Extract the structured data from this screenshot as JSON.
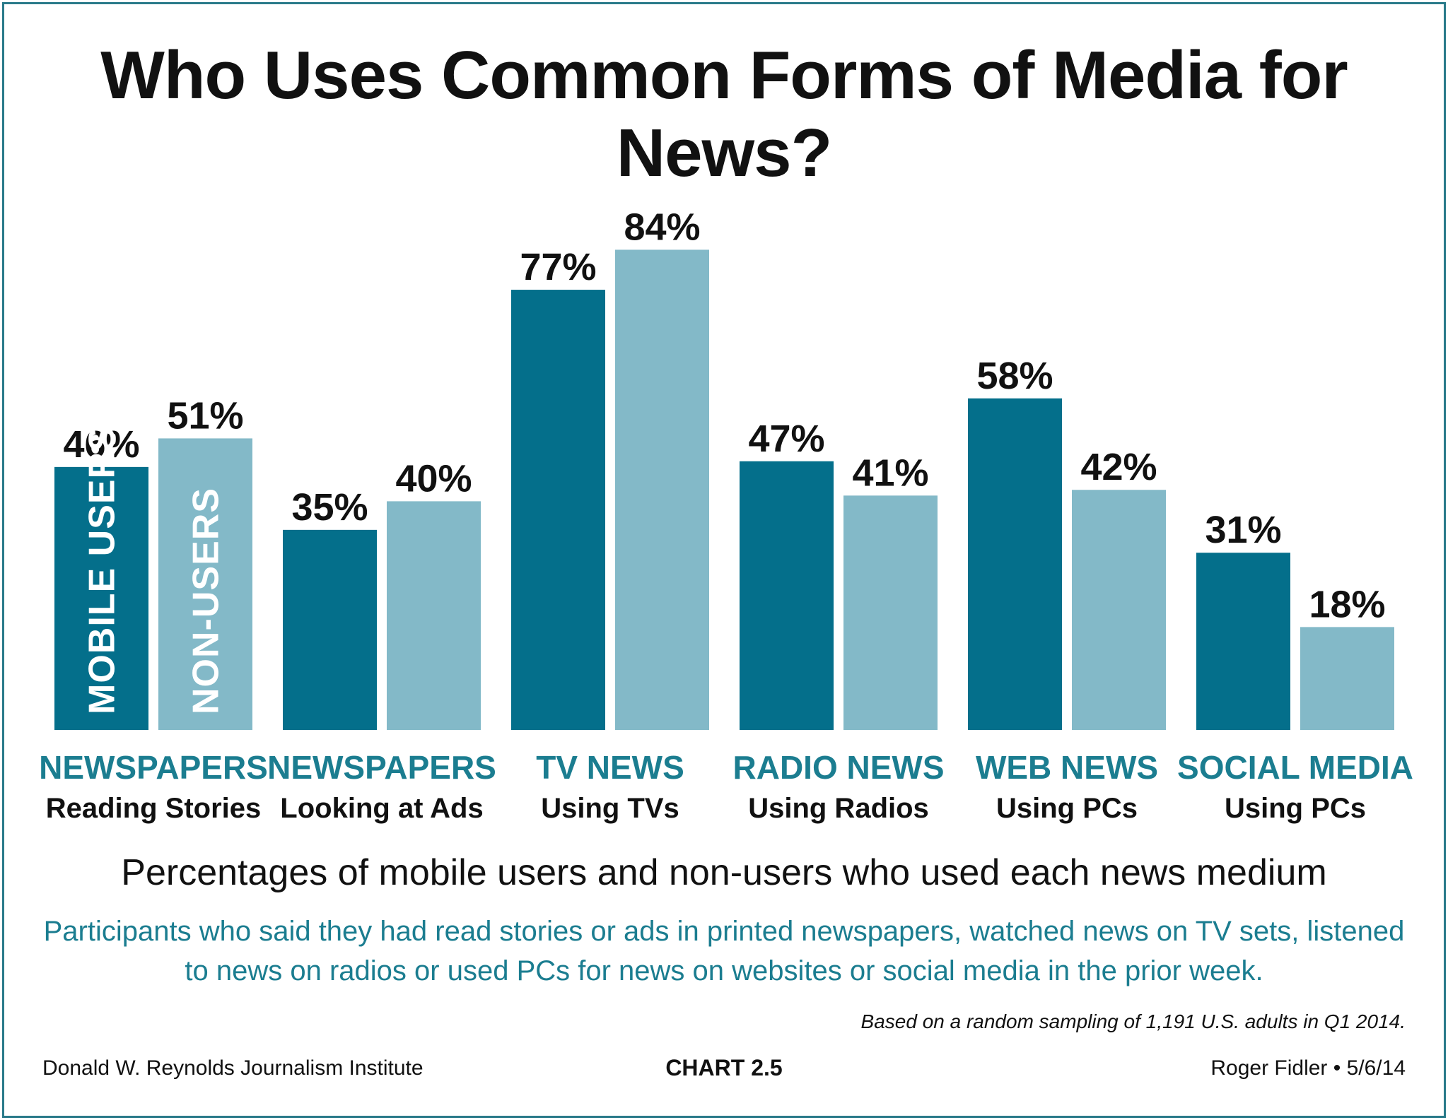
{
  "title": "Who Uses Common Forms of Media for News?",
  "subtitle": "Percentages of mobile users and non-users who used each news medium",
  "description": "Participants who said they had read stories or ads in printed newspapers, watched news on TV sets, listened to news on radios or used PCs for news on websites or social media in the prior week.",
  "footnote": "Based on a random sampling of 1,191 U.S. adults in Q1 2014.",
  "footer": {
    "left": "Donald W. Reynolds Journalism Institute",
    "center": "CHART 2.5",
    "right": "Roger Fidler • 5/6/14"
  },
  "colors": {
    "mobile_users": "#046f8b",
    "non_users": "#83b9c8",
    "category_text": "#1b7d90",
    "border": "#2a7a8a"
  },
  "chart_data": {
    "type": "bar",
    "categories": [
      {
        "main": "NEWSPAPERS",
        "sub": "Reading Stories"
      },
      {
        "main": "NEWSPAPERS",
        "sub": "Looking at Ads"
      },
      {
        "main": "TV NEWS",
        "sub": "Using TVs"
      },
      {
        "main": "RADIO NEWS",
        "sub": "Using Radios"
      },
      {
        "main": "WEB NEWS",
        "sub": "Using PCs"
      },
      {
        "main": "SOCIAL MEDIA",
        "sub": "Using PCs"
      }
    ],
    "series": [
      {
        "name": "MOBILE USERS",
        "values": [
          46,
          35,
          77,
          47,
          58,
          31
        ]
      },
      {
        "name": "NON-USERS",
        "values": [
          51,
          40,
          84,
          41,
          42,
          18
        ]
      }
    ],
    "value_suffix": "%",
    "ylim": [
      0,
      100
    ],
    "grid": false,
    "legend": "inside-first-bars"
  }
}
